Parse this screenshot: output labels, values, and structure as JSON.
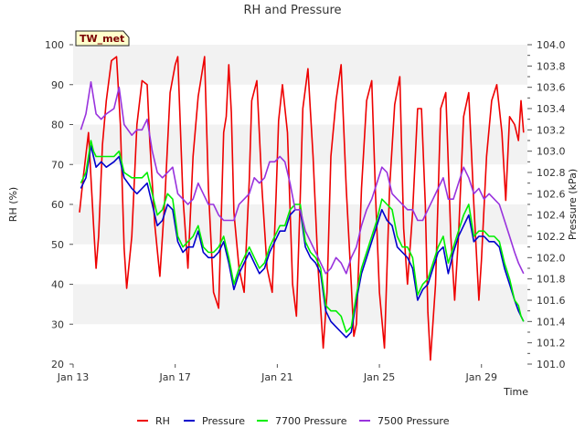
{
  "chart_data": {
    "type": "line",
    "title": "RH and Pressure",
    "badge": "TW_met",
    "xlabel": "Time",
    "ylabel": "RH (%)",
    "y2label": "Pressure (kPa)",
    "xlim": [
      0,
      17.8
    ],
    "ylim": [
      20,
      100
    ],
    "y2lim": [
      101.0,
      104.0
    ],
    "x_ticks": [
      {
        "v": 0,
        "label": "Jan 13"
      },
      {
        "v": 4,
        "label": "Jan 17"
      },
      {
        "v": 8,
        "label": "Jan 21"
      },
      {
        "v": 12,
        "label": "Jan 25"
      },
      {
        "v": 16,
        "label": "Jan 29"
      }
    ],
    "y_ticks": [
      20,
      30,
      40,
      50,
      60,
      70,
      80,
      90,
      100
    ],
    "y2_ticks": [
      "101.0",
      "101.2",
      "101.4",
      "101.6",
      "101.8",
      "102.0",
      "102.2",
      "102.4",
      "102.6",
      "102.8",
      "103.0",
      "103.2",
      "103.4",
      "103.6",
      "103.8",
      "104.0"
    ],
    "grid": "horizontal bands",
    "legend": "bottom",
    "series": [
      {
        "name": "RH",
        "color": "#ee0000",
        "axis": "left",
        "x": [
          0.25,
          0.4,
          0.6,
          0.8,
          0.9,
          1.0,
          1.15,
          1.3,
          1.5,
          1.7,
          1.85,
          2.0,
          2.1,
          2.3,
          2.5,
          2.7,
          2.9,
          3.0,
          3.2,
          3.4,
          3.6,
          3.8,
          4.0,
          4.1,
          4.3,
          4.5,
          4.7,
          4.9,
          5.0,
          5.15,
          5.3,
          5.5,
          5.7,
          5.9,
          6.0,
          6.1,
          6.2,
          6.3,
          6.5,
          6.7,
          6.9,
          7.0,
          7.2,
          7.4,
          7.6,
          7.8,
          7.95,
          8.05,
          8.2,
          8.4,
          8.6,
          8.75,
          8.9,
          9.0,
          9.2,
          9.4,
          9.6,
          9.8,
          9.95,
          10.1,
          10.3,
          10.5,
          10.7,
          10.9,
          11.0,
          11.1,
          11.3,
          11.5,
          11.7,
          11.85,
          12.0,
          12.2,
          12.4,
          12.6,
          12.8,
          12.95,
          13.1,
          13.3,
          13.5,
          13.65,
          13.8,
          13.9,
          14.0,
          14.2,
          14.4,
          14.6,
          14.8,
          14.95,
          15.1,
          15.3,
          15.5,
          15.7,
          15.9,
          16.0,
          16.2,
          16.4,
          16.6,
          16.8,
          16.95,
          17.1,
          17.3,
          17.45,
          17.55,
          17.65
        ],
        "values": [
          58,
          67,
          78,
          55,
          44,
          52,
          75,
          86,
          96,
          97,
          80,
          49,
          39,
          52,
          80,
          91,
          90,
          76,
          55,
          42,
          62,
          88,
          95,
          97,
          62,
          44,
          72,
          87,
          91,
          97,
          64,
          38,
          34,
          78,
          82,
          95,
          83,
          58,
          44,
          38,
          66,
          86,
          91,
          64,
          44,
          38,
          62,
          81,
          90,
          78,
          40,
          32,
          62,
          84,
          94,
          72,
          44,
          24,
          38,
          72,
          86,
          95,
          64,
          40,
          27,
          30,
          64,
          86,
          91,
          62,
          38,
          24,
          64,
          85,
          92,
          54,
          40,
          58,
          84,
          84,
          60,
          33,
          21,
          40,
          84,
          88,
          52,
          36,
          52,
          82,
          88,
          60,
          36,
          46,
          72,
          86,
          90,
          78,
          61,
          82,
          80,
          76,
          86,
          78
        ]
      },
      {
        "name": "Pressure",
        "color": "#0000cc",
        "axis": "right",
        "x": [
          0.3,
          0.5,
          0.7,
          0.8,
          0.9,
          1.1,
          1.3,
          1.6,
          1.8,
          2.0,
          2.3,
          2.5,
          2.7,
          2.9,
          3.1,
          3.3,
          3.5,
          3.7,
          3.9,
          4.1,
          4.3,
          4.5,
          4.7,
          4.9,
          5.1,
          5.3,
          5.5,
          5.7,
          5.9,
          6.1,
          6.3,
          6.5,
          6.7,
          6.9,
          7.1,
          7.3,
          7.5,
          7.7,
          7.9,
          8.1,
          8.3,
          8.5,
          8.7,
          8.9,
          9.1,
          9.3,
          9.5,
          9.7,
          9.9,
          10.1,
          10.3,
          10.5,
          10.7,
          10.9,
          11.1,
          11.3,
          11.5,
          11.7,
          11.9,
          12.1,
          12.3,
          12.5,
          12.7,
          12.9,
          13.1,
          13.3,
          13.5,
          13.7,
          13.9,
          14.1,
          14.3,
          14.5,
          14.7,
          14.9,
          15.1,
          15.3,
          15.5,
          15.7,
          15.9,
          16.1,
          16.3,
          16.5,
          16.7,
          16.9,
          17.1,
          17.3,
          17.45,
          17.55,
          17.65
        ],
        "values": [
          102.65,
          102.75,
          103.05,
          102.95,
          102.85,
          102.9,
          102.85,
          102.9,
          102.95,
          102.75,
          102.65,
          102.6,
          102.65,
          102.7,
          102.5,
          102.3,
          102.35,
          102.5,
          102.45,
          102.15,
          102.05,
          102.1,
          102.1,
          102.25,
          102.05,
          102.0,
          102.0,
          102.05,
          102.15,
          101.95,
          101.7,
          101.85,
          101.95,
          102.05,
          101.95,
          101.85,
          101.9,
          102.05,
          102.15,
          102.25,
          102.25,
          102.4,
          102.45,
          102.45,
          102.1,
          102.0,
          101.95,
          101.85,
          101.5,
          101.4,
          101.35,
          101.3,
          101.25,
          101.3,
          101.6,
          101.85,
          102.0,
          102.15,
          102.3,
          102.45,
          102.35,
          102.3,
          102.1,
          102.05,
          102.0,
          101.9,
          101.6,
          101.7,
          101.75,
          101.9,
          102.05,
          102.1,
          101.85,
          102.05,
          102.2,
          102.3,
          102.4,
          102.15,
          102.2,
          102.2,
          102.15,
          102.15,
          102.1,
          101.9,
          101.75,
          101.6,
          101.5,
          101.45,
          101.4
        ]
      },
      {
        "name": "7700 Pressure",
        "color": "#00ee00",
        "axis": "right",
        "x": [
          0.3,
          0.5,
          0.7,
          0.8,
          0.9,
          1.1,
          1.3,
          1.6,
          1.8,
          2.0,
          2.3,
          2.5,
          2.7,
          2.9,
          3.1,
          3.3,
          3.5,
          3.7,
          3.9,
          4.1,
          4.3,
          4.5,
          4.7,
          4.9,
          5.1,
          5.3,
          5.5,
          5.7,
          5.9,
          6.1,
          6.3,
          6.5,
          6.7,
          6.9,
          7.1,
          7.3,
          7.5,
          7.7,
          7.9,
          8.1,
          8.3,
          8.5,
          8.7,
          8.9,
          9.1,
          9.3,
          9.5,
          9.7,
          9.9,
          10.1,
          10.3,
          10.5,
          10.7,
          10.9,
          11.1,
          11.3,
          11.5,
          11.7,
          11.9,
          12.1,
          12.3,
          12.5,
          12.7,
          12.9,
          13.1,
          13.3,
          13.5,
          13.7,
          13.9,
          14.1,
          14.3,
          14.5,
          14.7,
          14.9,
          15.1,
          15.3,
          15.5,
          15.7,
          15.9,
          16.1,
          16.3,
          16.5,
          16.7,
          16.9,
          17.1,
          17.3,
          17.45,
          17.55,
          17.65
        ],
        "values": [
          102.7,
          102.8,
          103.1,
          103.0,
          102.95,
          102.95,
          102.95,
          102.95,
          103.0,
          102.8,
          102.75,
          102.75,
          102.75,
          102.8,
          102.6,
          102.4,
          102.45,
          102.6,
          102.55,
          102.2,
          102.1,
          102.15,
          102.2,
          102.3,
          102.1,
          102.05,
          102.05,
          102.1,
          102.2,
          102.0,
          101.75,
          101.9,
          102.0,
          102.1,
          102.0,
          101.9,
          101.95,
          102.1,
          102.2,
          102.3,
          102.3,
          102.45,
          102.5,
          102.5,
          102.15,
          102.05,
          102.0,
          101.9,
          101.55,
          101.5,
          101.5,
          101.45,
          101.3,
          101.35,
          101.65,
          101.9,
          102.05,
          102.2,
          102.35,
          102.55,
          102.5,
          102.45,
          102.2,
          102.1,
          102.1,
          102.0,
          101.65,
          101.75,
          101.8,
          101.95,
          102.1,
          102.2,
          101.95,
          102.1,
          102.25,
          102.4,
          102.5,
          102.2,
          102.25,
          102.25,
          102.2,
          102.2,
          102.15,
          101.95,
          101.8,
          101.6,
          101.55,
          101.45,
          101.4
        ]
      },
      {
        "name": "7500 Pressure",
        "color": "#9933dd",
        "axis": "right",
        "x": [
          0.3,
          0.5,
          0.7,
          0.8,
          0.9,
          1.1,
          1.3,
          1.6,
          1.8,
          2.0,
          2.3,
          2.5,
          2.7,
          2.9,
          3.1,
          3.3,
          3.5,
          3.7,
          3.9,
          4.1,
          4.3,
          4.5,
          4.7,
          4.9,
          5.1,
          5.3,
          5.5,
          5.7,
          5.9,
          6.1,
          6.3,
          6.5,
          6.7,
          6.9,
          7.1,
          7.3,
          7.5,
          7.7,
          7.9,
          8.1,
          8.3,
          8.5,
          8.7,
          8.9,
          9.1,
          9.3,
          9.5,
          9.7,
          9.9,
          10.1,
          10.3,
          10.5,
          10.7,
          10.9,
          11.1,
          11.3,
          11.5,
          11.7,
          11.9,
          12.1,
          12.3,
          12.5,
          12.7,
          12.9,
          13.1,
          13.3,
          13.5,
          13.7,
          13.9,
          14.1,
          14.3,
          14.5,
          14.7,
          14.9,
          15.1,
          15.3,
          15.5,
          15.7,
          15.9,
          16.1,
          16.3,
          16.5,
          16.7,
          16.9,
          17.1,
          17.3,
          17.45,
          17.55,
          17.65
        ],
        "values": [
          103.2,
          103.35,
          103.65,
          103.5,
          103.35,
          103.3,
          103.35,
          103.4,
          103.6,
          103.25,
          103.15,
          103.2,
          103.2,
          103.3,
          103.0,
          102.8,
          102.75,
          102.8,
          102.85,
          102.6,
          102.55,
          102.5,
          102.55,
          102.7,
          102.6,
          102.5,
          102.5,
          102.4,
          102.35,
          102.35,
          102.35,
          102.5,
          102.55,
          102.6,
          102.75,
          102.7,
          102.75,
          102.9,
          102.9,
          102.95,
          102.9,
          102.7,
          102.45,
          102.45,
          102.25,
          102.15,
          102.05,
          101.95,
          101.85,
          101.9,
          102.0,
          101.95,
          101.85,
          102.0,
          102.1,
          102.3,
          102.45,
          102.55,
          102.7,
          102.85,
          102.8,
          102.6,
          102.55,
          102.5,
          102.45,
          102.45,
          102.35,
          102.35,
          102.45,
          102.55,
          102.65,
          102.75,
          102.55,
          102.55,
          102.7,
          102.85,
          102.75,
          102.6,
          102.65,
          102.55,
          102.6,
          102.55,
          102.5,
          102.35,
          102.2,
          102.05,
          101.95,
          101.9,
          101.85
        ]
      }
    ]
  }
}
